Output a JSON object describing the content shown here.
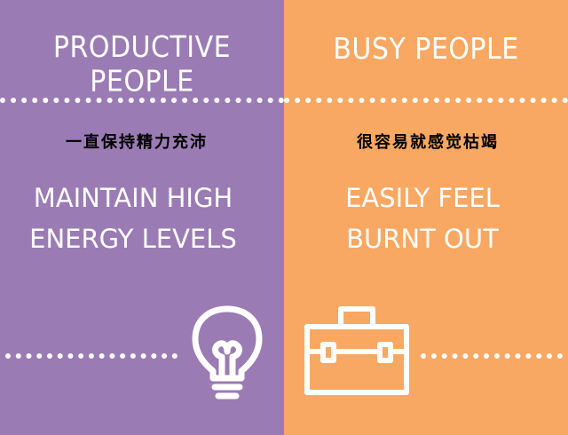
{
  "left": {
    "title": "PRODUCTIVE PEOPLE",
    "chinese": "一直保持精力充沛",
    "line1": "MAINTAIN HIGH",
    "line2": "ENERGY LEVELS",
    "color": "#9b7bb4",
    "icon": "lightbulb-icon"
  },
  "right": {
    "title": "BUSY PEOPLE",
    "chinese": "很容易就感觉枯竭",
    "line1": "EASILY FEEL",
    "line2": "BURNT OUT",
    "color": "#f8a862",
    "icon": "briefcase-icon"
  }
}
